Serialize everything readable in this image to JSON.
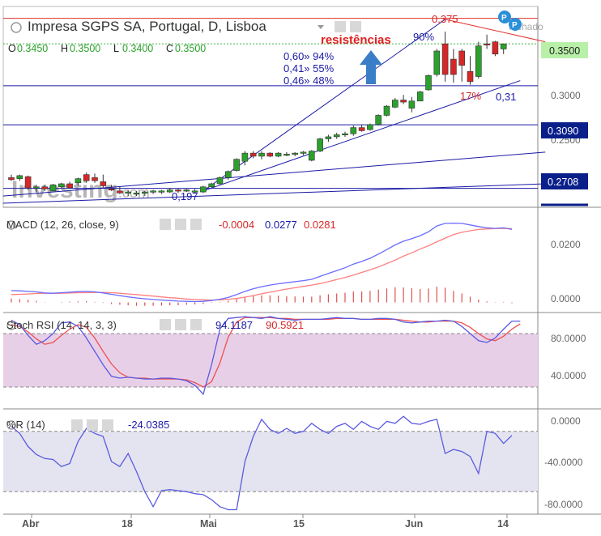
{
  "header": {
    "title": "Impresa SGPS SA, Portugal, D, Lisboa",
    "ohlc": [
      {
        "label": "O",
        "value": "0.3450"
      },
      {
        "label": "H",
        "value": "0.3500"
      },
      {
        "label": "L",
        "value": "0.3400"
      },
      {
        "label": "C",
        "value": "0.3500"
      }
    ],
    "status_text": "fechado",
    "badge_letters": [
      "P",
      "P"
    ]
  },
  "watermark": {
    "brand": "Investing",
    "suffix": ".com"
  },
  "annotations": {
    "resist_label": "resistências",
    "fib_lines": [
      "0,60» 94%",
      "0,41» 55%",
      "0,46» 48%"
    ],
    "pct_90": "90%",
    "high_label": "0,375",
    "pct_17": "17%",
    "val_031": "0,31",
    "low_label": "0,197"
  },
  "price_axis": {
    "current_price": "0.3500",
    "badges": [
      "0.3090",
      "0.2708"
    ],
    "ticks": [
      "0.3000",
      "0.2500"
    ]
  },
  "x_axis": {
    "ticks": [
      "Abr",
      "18",
      "Mai",
      "15",
      "Jun",
      "14"
    ]
  },
  "colors": {
    "up": "#2ca02c",
    "down": "#d62728",
    "blue_line": "#1a1aa6",
    "red_line": "#e0302b",
    "macd_line": "#6b6bff",
    "signal_line": "#ff7f7f",
    "stoch_band": "#e8cfe8",
    "wr_band": "#e4e4f0",
    "price_badge": "#0a1f8a",
    "current_badge": "#b8f0a8"
  },
  "chart_data": [
    {
      "type": "candlestick",
      "title": "Impresa SGPS SA, Portugal, D, Lisboa",
      "ylim": [
        0.19,
        0.385
      ],
      "candles": [
        {
          "o": 0.219,
          "h": 0.222,
          "l": 0.216,
          "c": 0.217
        },
        {
          "o": 0.218,
          "h": 0.222,
          "l": 0.216,
          "c": 0.221
        },
        {
          "o": 0.22,
          "h": 0.221,
          "l": 0.207,
          "c": 0.209
        },
        {
          "o": 0.209,
          "h": 0.212,
          "l": 0.205,
          "c": 0.21
        },
        {
          "o": 0.21,
          "h": 0.212,
          "l": 0.206,
          "c": 0.208
        },
        {
          "o": 0.206,
          "h": 0.213,
          "l": 0.206,
          "c": 0.212
        },
        {
          "o": 0.21,
          "h": 0.214,
          "l": 0.208,
          "c": 0.213
        },
        {
          "o": 0.213,
          "h": 0.215,
          "l": 0.208,
          "c": 0.209
        },
        {
          "o": 0.214,
          "h": 0.219,
          "l": 0.211,
          "c": 0.218
        },
        {
          "o": 0.222,
          "h": 0.224,
          "l": 0.214,
          "c": 0.216
        },
        {
          "o": 0.219,
          "h": 0.223,
          "l": 0.214,
          "c": 0.216
        },
        {
          "o": 0.215,
          "h": 0.222,
          "l": 0.209,
          "c": 0.211
        },
        {
          "o": 0.208,
          "h": 0.212,
          "l": 0.206,
          "c": 0.207
        },
        {
          "o": 0.206,
          "h": 0.21,
          "l": 0.203,
          "c": 0.204
        },
        {
          "o": 0.204,
          "h": 0.207,
          "l": 0.201,
          "c": 0.205
        },
        {
          "o": 0.204,
          "h": 0.206,
          "l": 0.201,
          "c": 0.204
        },
        {
          "o": 0.204,
          "h": 0.206,
          "l": 0.201,
          "c": 0.205
        },
        {
          "o": 0.205,
          "h": 0.207,
          "l": 0.203,
          "c": 0.206
        },
        {
          "o": 0.205,
          "h": 0.207,
          "l": 0.203,
          "c": 0.206
        },
        {
          "o": 0.205,
          "h": 0.209,
          "l": 0.204,
          "c": 0.207
        },
        {
          "o": 0.207,
          "h": 0.208,
          "l": 0.204,
          "c": 0.206
        },
        {
          "o": 0.206,
          "h": 0.208,
          "l": 0.205,
          "c": 0.207
        },
        {
          "o": 0.206,
          "h": 0.208,
          "l": 0.204,
          "c": 0.206
        },
        {
          "o": 0.205,
          "h": 0.211,
          "l": 0.204,
          "c": 0.21
        },
        {
          "o": 0.21,
          "h": 0.214,
          "l": 0.209,
          "c": 0.213
        },
        {
          "o": 0.213,
          "h": 0.22,
          "l": 0.212,
          "c": 0.219
        },
        {
          "o": 0.219,
          "h": 0.226,
          "l": 0.217,
          "c": 0.225
        },
        {
          "o": 0.226,
          "h": 0.238,
          "l": 0.225,
          "c": 0.237
        },
        {
          "o": 0.235,
          "h": 0.245,
          "l": 0.231,
          "c": 0.243
        },
        {
          "o": 0.243,
          "h": 0.245,
          "l": 0.238,
          "c": 0.24
        },
        {
          "o": 0.24,
          "h": 0.245,
          "l": 0.237,
          "c": 0.243
        },
        {
          "o": 0.243,
          "h": 0.244,
          "l": 0.239,
          "c": 0.24
        },
        {
          "o": 0.24,
          "h": 0.244,
          "l": 0.239,
          "c": 0.243
        },
        {
          "o": 0.242,
          "h": 0.244,
          "l": 0.24,
          "c": 0.242
        },
        {
          "o": 0.242,
          "h": 0.244,
          "l": 0.24,
          "c": 0.243
        },
        {
          "o": 0.243,
          "h": 0.245,
          "l": 0.241,
          "c": 0.244
        },
        {
          "o": 0.236,
          "h": 0.246,
          "l": 0.235,
          "c": 0.245
        },
        {
          "o": 0.245,
          "h": 0.258,
          "l": 0.244,
          "c": 0.257
        },
        {
          "o": 0.257,
          "h": 0.261,
          "l": 0.254,
          "c": 0.259
        },
        {
          "o": 0.259,
          "h": 0.263,
          "l": 0.257,
          "c": 0.261
        },
        {
          "o": 0.261,
          "h": 0.264,
          "l": 0.259,
          "c": 0.262
        },
        {
          "o": 0.262,
          "h": 0.27,
          "l": 0.26,
          "c": 0.268
        },
        {
          "o": 0.268,
          "h": 0.271,
          "l": 0.264,
          "c": 0.265
        },
        {
          "o": 0.266,
          "h": 0.272,
          "l": 0.265,
          "c": 0.271
        },
        {
          "o": 0.271,
          "h": 0.281,
          "l": 0.27,
          "c": 0.28
        },
        {
          "o": 0.28,
          "h": 0.29,
          "l": 0.279,
          "c": 0.289
        },
        {
          "o": 0.288,
          "h": 0.297,
          "l": 0.287,
          "c": 0.295
        },
        {
          "o": 0.295,
          "h": 0.3,
          "l": 0.291,
          "c": 0.293
        },
        {
          "o": 0.287,
          "h": 0.298,
          "l": 0.283,
          "c": 0.294
        },
        {
          "o": 0.294,
          "h": 0.304,
          "l": 0.294,
          "c": 0.303
        },
        {
          "o": 0.305,
          "h": 0.32,
          "l": 0.304,
          "c": 0.319
        },
        {
          "o": 0.32,
          "h": 0.345,
          "l": 0.318,
          "c": 0.343
        },
        {
          "o": 0.35,
          "h": 0.362,
          "l": 0.313,
          "c": 0.32
        },
        {
          "o": 0.335,
          "h": 0.345,
          "l": 0.312,
          "c": 0.32
        },
        {
          "o": 0.343,
          "h": 0.345,
          "l": 0.313,
          "c": 0.329
        },
        {
          "o": 0.323,
          "h": 0.338,
          "l": 0.31,
          "c": 0.313
        },
        {
          "o": 0.318,
          "h": 0.352,
          "l": 0.316,
          "c": 0.348
        },
        {
          "o": 0.35,
          "h": 0.359,
          "l": 0.345,
          "c": 0.349
        },
        {
          "o": 0.352,
          "h": 0.353,
          "l": 0.338,
          "c": 0.34
        },
        {
          "o": 0.345,
          "h": 0.35,
          "l": 0.34,
          "c": 0.35
        }
      ],
      "horizontal_lines": [
        {
          "y": 0.375,
          "color": "red"
        },
        {
          "y": 0.309,
          "color": "blue"
        },
        {
          "y": 0.2708,
          "color": "blue"
        },
        {
          "y": 0.2085,
          "color": "blue"
        }
      ],
      "trend_lines": [
        {
          "from": [
            23,
            0.206
          ],
          "to": [
            52,
            0.374
          ],
          "color": "blue"
        },
        {
          "from": [
            23,
            0.206
          ],
          "to": [
            61,
            0.314
          ],
          "color": "blue"
        },
        {
          "from": [
            -1,
            0.201
          ],
          "to": [
            64,
            0.244
          ],
          "color": "blue"
        },
        {
          "from": [
            -1,
            0.194
          ],
          "to": [
            64,
            0.213
          ],
          "color": "blue"
        },
        {
          "from": [
            52,
            0.374
          ],
          "to": [
            64,
            0.352
          ],
          "color": "red"
        }
      ],
      "dotted_line": {
        "y": 0.35
      }
    },
    {
      "type": "line",
      "title": "MACD (12, 26, close, 9)",
      "values_display": [
        "-0.0004",
        "0.0277",
        "0.0281"
      ],
      "ylim": [
        -0.002,
        0.035
      ],
      "ticks": [
        "0.0200",
        "0.0000"
      ],
      "macd": [
        0.0045,
        0.0044,
        0.0042,
        0.004,
        0.0036,
        0.0035,
        0.0037,
        0.0039,
        0.0041,
        0.0042,
        0.004,
        0.0036,
        0.0031,
        0.0026,
        0.0021,
        0.0017,
        0.0014,
        0.0011,
        0.0009,
        0.0007,
        0.0005,
        0.0004,
        0.0003,
        0.0004,
        0.0007,
        0.0012,
        0.0019,
        0.003,
        0.0042,
        0.0052,
        0.006,
        0.0066,
        0.0071,
        0.0075,
        0.0079,
        0.0083,
        0.0088,
        0.0099,
        0.011,
        0.0121,
        0.0132,
        0.0146,
        0.0156,
        0.0168,
        0.0184,
        0.0201,
        0.0219,
        0.0233,
        0.0243,
        0.0254,
        0.0269,
        0.0291,
        0.0301,
        0.0302,
        0.0301,
        0.0295,
        0.0289,
        0.0284,
        0.0282,
        0.0284,
        0.0278
      ],
      "signal": [
        0.003,
        0.0031,
        0.0032,
        0.0034,
        0.0035,
        0.0035,
        0.0035,
        0.0036,
        0.0037,
        0.0037,
        0.0038,
        0.0038,
        0.0037,
        0.0035,
        0.0032,
        0.003,
        0.0027,
        0.0024,
        0.0021,
        0.0018,
        0.0016,
        0.0013,
        0.0011,
        0.001,
        0.0009,
        0.001,
        0.0012,
        0.0015,
        0.002,
        0.0026,
        0.0033,
        0.0039,
        0.0045,
        0.0051,
        0.0056,
        0.0061,
        0.0066,
        0.0072,
        0.0079,
        0.0087,
        0.0095,
        0.0104,
        0.0114,
        0.0124,
        0.0135,
        0.0148,
        0.0161,
        0.0176,
        0.0189,
        0.0203,
        0.0216,
        0.0231,
        0.0245,
        0.0258,
        0.0267,
        0.0273,
        0.0278,
        0.028,
        0.0281,
        0.0282,
        0.0281
      ]
    },
    {
      "type": "line",
      "title": "Stoch RSI (14, 14, 3, 3)",
      "values_display": [
        "94.1187",
        "90.5921"
      ],
      "ylim": [
        0,
        100
      ],
      "band": [
        20,
        80
      ],
      "ticks": [
        "80.0000",
        "40.0000"
      ],
      "k": [
        95,
        90,
        78,
        68,
        72,
        80,
        92,
        93,
        88,
        75,
        60,
        45,
        32,
        30,
        31,
        30,
        29,
        29,
        30,
        30,
        29,
        27,
        22,
        12,
        45,
        85,
        97,
        98,
        99,
        98,
        97,
        99,
        97,
        96,
        95,
        96,
        96,
        96,
        97,
        98,
        97,
        97,
        96,
        96,
        97,
        97,
        96,
        93,
        92,
        93,
        94,
        94,
        95,
        94,
        88,
        80,
        72,
        70,
        75,
        85,
        94,
        94
      ],
      "d": [
        90,
        88,
        82,
        74,
        68,
        70,
        78,
        85,
        90,
        87,
        75,
        60,
        46,
        36,
        31,
        30,
        30,
        29,
        29,
        29,
        29,
        28,
        25,
        20,
        26,
        47,
        76,
        93,
        98,
        98,
        98,
        98,
        97,
        97,
        96,
        96,
        96,
        96,
        96,
        97,
        97,
        97,
        96,
        96,
        96,
        96,
        96,
        95,
        94,
        93,
        93,
        94,
        94,
        94,
        92,
        87,
        80,
        74,
        72,
        77,
        85,
        91
      ]
    },
    {
      "type": "line",
      "title": "%R (14)",
      "values_display": [
        "-24.0385"
      ],
      "ylim": [
        -100,
        0
      ],
      "band": [
        -80,
        -20
      ],
      "ticks": [
        "0.0000",
        "-40.0000",
        "-80.0000"
      ],
      "r": [
        -15,
        -22,
        -35,
        -43,
        -47,
        -48,
        -55,
        -52,
        -30,
        -17,
        -22,
        -25,
        -50,
        -55,
        -42,
        -60,
        -80,
        -95,
        -79,
        -78,
        -79,
        -80,
        -82,
        -83,
        -88,
        -95,
        -98,
        -98,
        -50,
        -25,
        -8,
        -18,
        -22,
        -17,
        -22,
        -20,
        -12,
        -18,
        -22,
        -15,
        -12,
        -18,
        -10,
        -15,
        -18,
        -10,
        -12,
        -5,
        -12,
        -13,
        -10,
        -8,
        -42,
        -38,
        -40,
        -45,
        -62,
        -20,
        -22,
        -32,
        -24
      ]
    }
  ]
}
